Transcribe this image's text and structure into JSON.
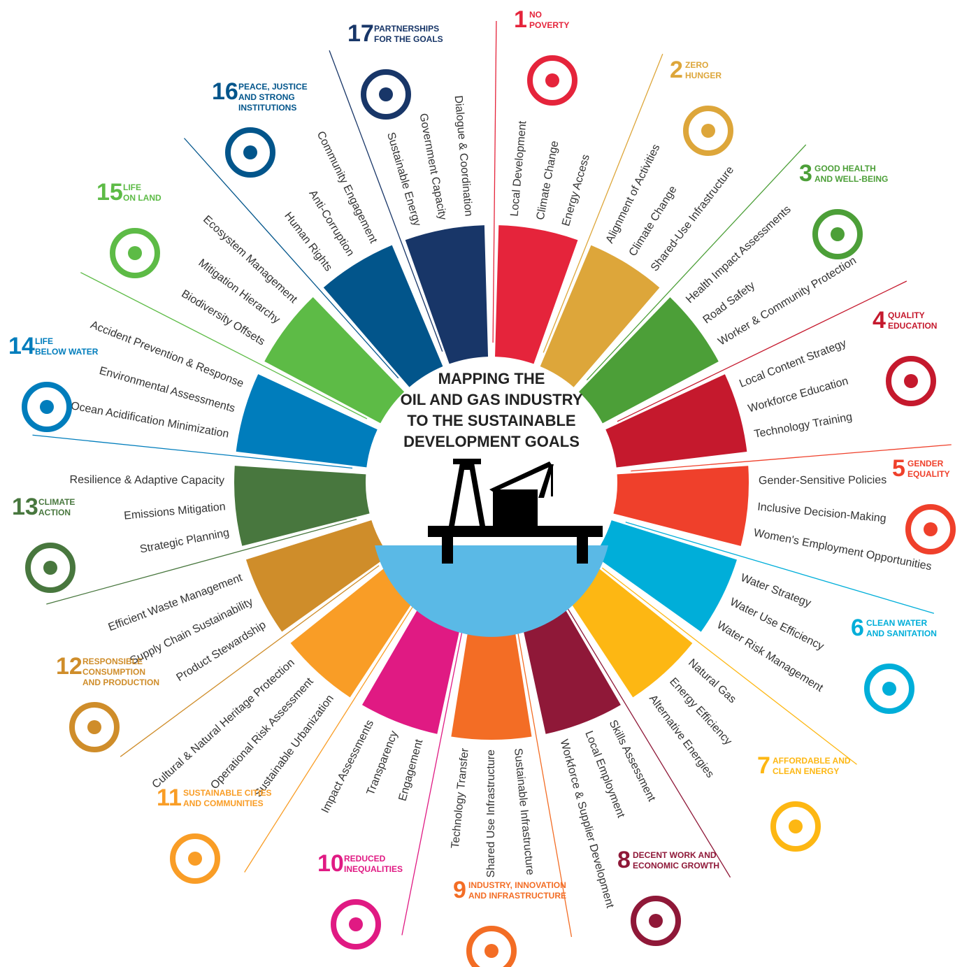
{
  "title": [
    "MAPPING THE",
    "OIL AND GAS INDUSTRY",
    "TO THE SUSTAINABLE",
    "DEVELOPMENT GOALS"
  ],
  "goals": [
    {
      "number": 1,
      "name": [
        "NO",
        "POVERTY"
      ],
      "color": "#e5243b",
      "items": [
        "Local Development",
        "Climate Change",
        "Energy Access"
      ]
    },
    {
      "number": 2,
      "name": [
        "ZERO",
        "HUNGER"
      ],
      "color": "#dda63a",
      "items": [
        "Alignment of Activities",
        "Climate Change",
        "Shared-Use Infrastructure"
      ]
    },
    {
      "number": 3,
      "name": [
        "GOOD HEALTH",
        "AND WELL-BEING"
      ],
      "color": "#4c9f38",
      "items": [
        "Health Impact Assessments",
        "Road Safety",
        "Worker & Community Protection"
      ]
    },
    {
      "number": 4,
      "name": [
        "QUALITY",
        "EDUCATION"
      ],
      "color": "#c5192d",
      "items": [
        "Local Content Strategy",
        "Workforce Education",
        "Technology Training"
      ]
    },
    {
      "number": 5,
      "name": [
        "GENDER",
        "EQUALITY"
      ],
      "color": "#ef402b",
      "items": [
        "Gender-Sensitive Policies",
        "Inclusive Decision-Making",
        "Women's Employment Opportunities"
      ]
    },
    {
      "number": 6,
      "name": [
        "CLEAN WATER",
        "AND SANITATION"
      ],
      "color": "#00aed9",
      "items": [
        "Water Strategy",
        "Water Use Efficiency",
        "Water Risk Management"
      ]
    },
    {
      "number": 7,
      "name": [
        "AFFORDABLE AND",
        "CLEAN ENERGY"
      ],
      "color": "#fdb713",
      "items": [
        "Natural Gas",
        "Energy Efficiency",
        "Alternative Energies"
      ]
    },
    {
      "number": 8,
      "name": [
        "DECENT WORK AND",
        "ECONOMIC GROWTH"
      ],
      "color": "#8f1838",
      "items": [
        "Skills Assessment",
        "Local Employment",
        "Workforce & Supplier Development"
      ]
    },
    {
      "number": 9,
      "name": [
        "INDUSTRY, INNOVATION",
        "AND INFRASTRUCTURE"
      ],
      "color": "#f36d25",
      "items": [
        "Sustainable Infrastructure",
        "Shared Use Infrastructure",
        "Technology Transfer"
      ]
    },
    {
      "number": 10,
      "name": [
        "REDUCED",
        "INEQUALITIES"
      ],
      "color": "#e01a83",
      "items": [
        "Engagement",
        "Transparency",
        "Impact Assessments"
      ]
    },
    {
      "number": 11,
      "name": [
        "SUSTAINABLE CITIES",
        "AND COMMUNITIES"
      ],
      "color": "#f99d26",
      "items": [
        "Sustainable Urbanization",
        "Operational Risk Assessment",
        "Cultural & Natural Heritage Protection"
      ]
    },
    {
      "number": 12,
      "name": [
        "RESPONSIBLE",
        "CONSUMPTION",
        "AND PRODUCTION"
      ],
      "color": "#cf8d2a",
      "items": [
        "Product Stewardship",
        "Supply Chain Sustainability",
        "Efficient Waste Management"
      ]
    },
    {
      "number": 13,
      "name": [
        "CLIMATE",
        "ACTION"
      ],
      "color": "#48773e",
      "items": [
        "Strategic Planning",
        "Emissions Mitigation",
        "Resilience & Adaptive Capacity"
      ]
    },
    {
      "number": 14,
      "name": [
        "LIFE",
        "BELOW WATER"
      ],
      "color": "#007dbc",
      "items": [
        "Ocean Acidification Minimization",
        "Environmental Assessments",
        "Accident Prevention & Response"
      ]
    },
    {
      "number": 15,
      "name": [
        "LIFE",
        "ON LAND"
      ],
      "color": "#5dbb46",
      "items": [
        "Biodiversity Offsets",
        "Mitigation Hierarchy",
        "Ecosystem Management"
      ]
    },
    {
      "number": 16,
      "name": [
        "PEACE, JUSTICE",
        "AND STRONG",
        "INSTITUTIONS"
      ],
      "color": "#02558b",
      "items": [
        "Human Rights",
        "Anti-Corruption",
        "Community Engagement"
      ]
    },
    {
      "number": 17,
      "name": [
        "PARTNERSHIPS",
        "FOR THE GOALS"
      ],
      "color": "#183668",
      "items": [
        "Sustainable Energy",
        "Government Capacity",
        "Dialogue & Coordination"
      ]
    }
  ]
}
